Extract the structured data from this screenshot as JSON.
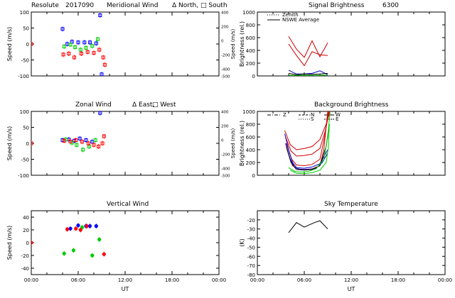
{
  "header": {
    "station": "Resolute",
    "date": "2017090",
    "wavelength": "6300"
  },
  "time_ticks": [
    "00:00",
    "06:00",
    "12:00",
    "18:00",
    "00:00"
  ],
  "time_axis_label": "UT",
  "chart_data": [
    {
      "id": "meridional",
      "type": "scatter",
      "title": "Meridional Wind",
      "legend": [
        "Δ North,",
        "□ South"
      ],
      "ylabel": "Speed (m/s)",
      "y2label": "Speed (m/s)",
      "xlim": [
        0,
        24
      ],
      "ylim": [
        -100,
        100
      ],
      "yticks": [
        -100,
        -50,
        0,
        50,
        100
      ],
      "y2lim": [
        -500,
        400
      ],
      "y2ticks": [
        -500,
        -400,
        -200,
        0,
        200,
        400
      ],
      "series": [
        {
          "name": "blue",
          "color": "#0000ff",
          "marker": "square",
          "points": [
            [
              4.0,
              47
            ],
            [
              4.6,
              0
            ],
            [
              5.2,
              7
            ],
            [
              6.0,
              5
            ],
            [
              6.8,
              5
            ],
            [
              7.5,
              5
            ],
            [
              8.3,
              2
            ],
            [
              8.8,
              90
            ],
            [
              9.0,
              -95
            ]
          ]
        },
        {
          "name": "green",
          "color": "#00cc00",
          "marker": "square",
          "points": [
            [
              4.2,
              -8
            ],
            [
              5.0,
              -2
            ],
            [
              5.6,
              -10
            ],
            [
              6.3,
              -18
            ],
            [
              7.0,
              -12
            ],
            [
              7.8,
              -6
            ],
            [
              8.5,
              15
            ]
          ]
        },
        {
          "name": "red",
          "color": "#ff0000",
          "marker": "square",
          "points": [
            [
              0.0,
              0
            ],
            [
              4.1,
              -33
            ],
            [
              4.8,
              -30
            ],
            [
              5.5,
              -42
            ],
            [
              6.4,
              -30
            ],
            [
              7.2,
              -25
            ],
            [
              8.0,
              -28
            ],
            [
              8.7,
              -18
            ],
            [
              9.2,
              -42
            ],
            [
              9.4,
              -65
            ]
          ]
        }
      ]
    },
    {
      "id": "zonal",
      "type": "scatter",
      "title": "Zonal Wind",
      "legend": [
        "Δ East,",
        "□ West"
      ],
      "ylabel": "Speed (m/s)",
      "y2label": "Speed (m/s)",
      "xlim": [
        0,
        24
      ],
      "ylim": [
        -100,
        100
      ],
      "yticks": [
        -100,
        -50,
        0,
        50,
        100
      ],
      "y2lim": [
        -500,
        400
      ],
      "y2ticks": [
        -500,
        -400,
        -200,
        0,
        200,
        400
      ],
      "series": [
        {
          "name": "blue",
          "color": "#0000ff",
          "marker": "square",
          "points": [
            [
              4.0,
              10
            ],
            [
              4.8,
              12
            ],
            [
              5.5,
              8
            ],
            [
              6.2,
              15
            ],
            [
              7.0,
              10
            ],
            [
              7.8,
              5
            ],
            [
              8.8,
              95
            ]
          ]
        },
        {
          "name": "green",
          "color": "#00cc00",
          "marker": "square",
          "points": [
            [
              4.4,
              12
            ],
            [
              5.2,
              2
            ],
            [
              5.8,
              -5
            ],
            [
              6.6,
              -20
            ],
            [
              7.4,
              -10
            ],
            [
              8.2,
              10
            ]
          ]
        },
        {
          "name": "red",
          "color": "#ff0000",
          "marker": "square",
          "points": [
            [
              0.0,
              0
            ],
            [
              4.2,
              8
            ],
            [
              5.0,
              6
            ],
            [
              5.7,
              10
            ],
            [
              6.5,
              5
            ],
            [
              7.3,
              0
            ],
            [
              8.0,
              -5
            ],
            [
              8.6,
              -10
            ],
            [
              9.1,
              0
            ],
            [
              9.3,
              22
            ]
          ]
        }
      ]
    },
    {
      "id": "vertical",
      "type": "scatter",
      "title": "Vertical Wind",
      "ylabel": "Speed (m/s)",
      "xlim": [
        0,
        24
      ],
      "ylim": [
        -50,
        50
      ],
      "yticks": [
        -40,
        -20,
        0,
        20,
        40
      ],
      "series": [
        {
          "name": "blue",
          "color": "#0000ff",
          "marker": "circle",
          "points": [
            [
              5.0,
              22
            ],
            [
              6.0,
              27
            ],
            [
              7.0,
              26
            ],
            [
              7.5,
              26
            ],
            [
              8.3,
              26
            ]
          ]
        },
        {
          "name": "green",
          "color": "#00cc00",
          "marker": "circle",
          "points": [
            [
              4.2,
              -17
            ],
            [
              5.4,
              -12
            ],
            [
              6.5,
              24
            ],
            [
              7.8,
              -20
            ],
            [
              8.7,
              5
            ]
          ]
        },
        {
          "name": "red",
          "color": "#ff0000",
          "marker": "circle",
          "points": [
            [
              0.0,
              0
            ],
            [
              4.6,
              21
            ],
            [
              5.7,
              22
            ],
            [
              6.3,
              20
            ],
            [
              7.1,
              26
            ],
            [
              9.3,
              -18
            ]
          ]
        }
      ]
    },
    {
      "id": "signal",
      "type": "line",
      "title": "Signal Brightness",
      "ylabel": "Brightness (rel.)",
      "xlim": [
        0,
        24
      ],
      "ylim": [
        0,
        1000
      ],
      "yticks": [
        0,
        200,
        400,
        600,
        800,
        1000
      ],
      "legend": [
        "Zenith",
        "NSWE Average"
      ],
      "series": [
        {
          "name": "red-1",
          "color": "#cc0000",
          "points": [
            [
              4.0,
              620
            ],
            [
              5.0,
              420
            ],
            [
              6.0,
              290
            ],
            [
              7.0,
              550
            ],
            [
              8.0,
              300
            ],
            [
              9.0,
              520
            ]
          ]
        },
        {
          "name": "red-2",
          "color": "#cc0000",
          "points": [
            [
              4.0,
              500
            ],
            [
              5.0,
              320
            ],
            [
              6.0,
              160
            ],
            [
              7.0,
              380
            ],
            [
              8.0,
              330
            ],
            [
              9.0,
              320
            ]
          ]
        },
        {
          "name": "blue",
          "color": "#0000cc",
          "points": [
            [
              4.0,
              90
            ],
            [
              5.0,
              30
            ],
            [
              6.0,
              30
            ],
            [
              7.0,
              40
            ],
            [
              8.0,
              80
            ],
            [
              9.0,
              20
            ]
          ]
        },
        {
          "name": "black",
          "color": "#000000",
          "points": [
            [
              4.0,
              40
            ],
            [
              5.0,
              20
            ],
            [
              6.0,
              30
            ],
            [
              7.0,
              25
            ],
            [
              8.0,
              30
            ],
            [
              9.0,
              40
            ]
          ]
        },
        {
          "name": "green",
          "color": "#00cc00",
          "points": [
            [
              4.0,
              10
            ],
            [
              5.0,
              10
            ],
            [
              6.0,
              15
            ],
            [
              7.0,
              10
            ],
            [
              8.0,
              10
            ],
            [
              9.0,
              15
            ]
          ]
        }
      ]
    },
    {
      "id": "background",
      "type": "line",
      "title": "Background Brightness",
      "ylabel": "Brightness (rel.)",
      "xlim": [
        0,
        24
      ],
      "ylim": [
        0,
        1000
      ],
      "yticks": [
        0,
        200,
        400,
        600,
        800,
        1000
      ],
      "legend": [
        "Z",
        "N",
        "S",
        "W",
        "E"
      ],
      "series": [
        {
          "name": "red-1",
          "color": "#cc0000",
          "points": [
            [
              3.5,
              700
            ],
            [
              4.2,
              480
            ],
            [
              5.0,
              400
            ],
            [
              6.0,
              420
            ],
            [
              7.0,
              450
            ],
            [
              8.0,
              560
            ],
            [
              8.8,
              800
            ],
            [
              9.3,
              1000
            ]
          ]
        },
        {
          "name": "red-2",
          "color": "#cc0000",
          "points": [
            [
              3.6,
              600
            ],
            [
              4.3,
              380
            ],
            [
              5.0,
              300
            ],
            [
              6.0,
              310
            ],
            [
              7.0,
              330
            ],
            [
              8.0,
              420
            ],
            [
              8.7,
              700
            ],
            [
              9.2,
              1000
            ]
          ]
        },
        {
          "name": "red-3",
          "color": "#cc0000",
          "points": [
            [
              3.7,
              500
            ],
            [
              4.4,
              250
            ],
            [
              5.0,
              160
            ],
            [
              6.0,
              150
            ],
            [
              7.0,
              170
            ],
            [
              8.0,
              250
            ],
            [
              8.6,
              600
            ],
            [
              9.1,
              1000
            ]
          ]
        },
        {
          "name": "red-4",
          "color": "#cc0000",
          "points": [
            [
              3.8,
              400
            ],
            [
              4.5,
              150
            ],
            [
              5.2,
              100
            ],
            [
              6.0,
              90
            ],
            [
              7.0,
              100
            ],
            [
              8.0,
              150
            ],
            [
              8.5,
              400
            ],
            [
              9.0,
              1000
            ]
          ]
        },
        {
          "name": "blue-1",
          "color": "#0000cc",
          "points": [
            [
              3.5,
              650
            ],
            [
              4.0,
              400
            ],
            [
              4.5,
              200
            ],
            [
              5.0,
              120
            ],
            [
              6.0,
              110
            ],
            [
              7.0,
              130
            ],
            [
              8.0,
              180
            ],
            [
              9.0,
              400
            ]
          ]
        },
        {
          "name": "blue-2",
          "color": "#0000cc",
          "points": [
            [
              3.6,
              500
            ],
            [
              4.2,
              250
            ],
            [
              4.8,
              120
            ],
            [
              5.5,
              90
            ],
            [
              6.5,
              90
            ],
            [
              7.5,
              110
            ],
            [
              8.3,
              200
            ],
            [
              9.0,
              350
            ]
          ]
        },
        {
          "name": "black",
          "color": "#000000",
          "points": [
            [
              3.7,
              450
            ],
            [
              4.3,
              200
            ],
            [
              5.0,
              90
            ],
            [
              6.0,
              80
            ],
            [
              7.0,
              90
            ],
            [
              8.0,
              150
            ],
            [
              8.8,
              450
            ],
            [
              9.2,
              800
            ]
          ]
        },
        {
          "name": "green-1",
          "color": "#00cc00",
          "points": [
            [
              4.0,
              120
            ],
            [
              4.8,
              60
            ],
            [
              5.5,
              50
            ],
            [
              6.5,
              60
            ],
            [
              7.5,
              100
            ],
            [
              8.5,
              250
            ],
            [
              9.0,
              600
            ],
            [
              9.3,
              1000
            ]
          ]
        },
        {
          "name": "green-2",
          "color": "#00cc00",
          "points": [
            [
              4.2,
              80
            ],
            [
              5.0,
              30
            ],
            [
              6.0,
              25
            ],
            [
              7.0,
              40
            ],
            [
              8.0,
              80
            ],
            [
              8.8,
              200
            ],
            [
              9.1,
              450
            ],
            [
              9.2,
              800
            ]
          ]
        }
      ]
    },
    {
      "id": "skytemp",
      "type": "line",
      "title": "Sky Temperature",
      "ylabel": "(K)",
      "xlim": [
        0,
        24
      ],
      "ylim": [
        -80,
        -10
      ],
      "yticks": [
        -80,
        -70,
        -60,
        -50,
        -40,
        -30,
        -20
      ],
      "series": [
        {
          "name": "black",
          "color": "#000000",
          "points": [
            [
              4.0,
              -34
            ],
            [
              5.0,
              -23
            ],
            [
              6.0,
              -28
            ],
            [
              7.3,
              -23
            ],
            [
              8.0,
              -21
            ],
            [
              9.0,
              -30
            ]
          ]
        }
      ]
    }
  ]
}
